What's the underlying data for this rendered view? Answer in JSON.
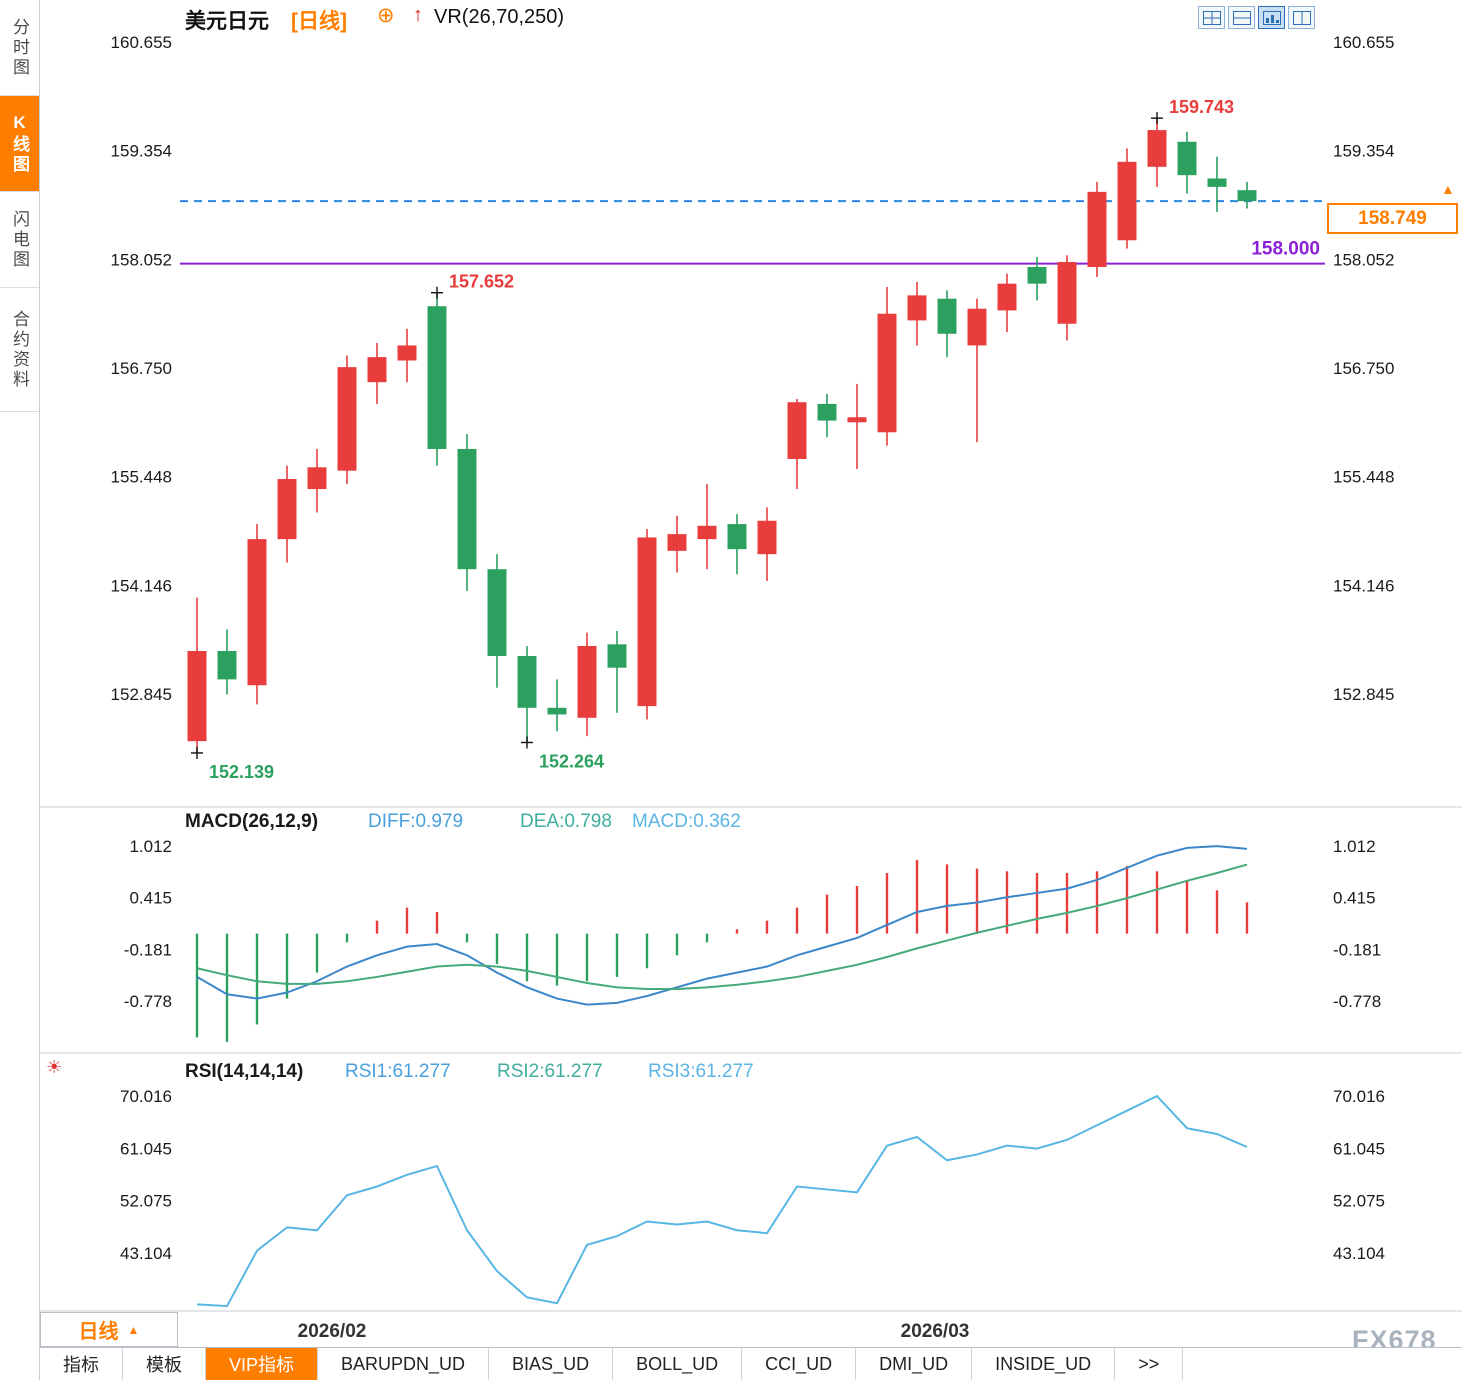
{
  "window": {
    "watermark": "FX678"
  },
  "icons": {
    "add_circle": "⊕",
    "up_arrow": "↑",
    "sun": "☀",
    "triangle_up": "▲"
  },
  "colors": {
    "up": "#e93c3c",
    "down": "#2ba05f",
    "accent": "#ff7e00",
    "level_purple": "#8a1fd6",
    "price_line_blue": "#2e86e0",
    "macd_diff_line": "#3c87c7",
    "macd_dea_line": "#46a97c",
    "rsi_line": "#58b6e4",
    "axis_text": "#1a1a1a"
  },
  "sidebar": {
    "tabs": [
      {
        "label": "分时图",
        "active": false
      },
      {
        "label": "K线图",
        "active": true
      },
      {
        "label": "闪电图",
        "active": false
      },
      {
        "label": "合约资料",
        "active": false
      }
    ]
  },
  "header": {
    "symbol": "美元日元",
    "period": "[日线]",
    "indicator": "VR(26,70,250)",
    "layout_icon_names": [
      "split-grid-icon",
      "split-rows-icon",
      "chart-panel-icon",
      "split-columns-icon"
    ]
  },
  "macd_header": {
    "title": "MACD(26,12,9)",
    "diff": "DIFF:0.979",
    "dea": "DEA:0.798",
    "macd": "MACD:0.362"
  },
  "rsi_header": {
    "title": "RSI(14,14,14)",
    "rsi1": "RSI1:61.277",
    "rsi2": "RSI2:61.277",
    "rsi3": "RSI3:61.277"
  },
  "period_selector": {
    "label": "日线"
  },
  "bottom_tabs": [
    {
      "label": "指标",
      "active": false
    },
    {
      "label": "模板",
      "active": false
    },
    {
      "label": "VIP指标",
      "active": true
    },
    {
      "label": "BARUPDN_UD",
      "active": false
    },
    {
      "label": "BIAS_UD",
      "active": false
    },
    {
      "label": "BOLL_UD",
      "active": false
    },
    {
      "label": "CCI_UD",
      "active": false
    },
    {
      "label": "DMI_UD",
      "active": false
    },
    {
      "label": "INSIDE_UD",
      "active": false
    },
    {
      "label": ">>",
      "active": false
    }
  ],
  "chart_data": [
    {
      "type": "candlestick",
      "title": "美元日元",
      "period": "日线",
      "y_ticks": [
        160.655,
        159.354,
        158.052,
        156.75,
        155.448,
        154.146,
        152.845
      ],
      "candles": [
        [
          152.28,
          154.0,
          152.139,
          153.36
        ],
        [
          153.36,
          153.62,
          152.84,
          153.02
        ],
        [
          152.95,
          154.88,
          152.72,
          154.7
        ],
        [
          154.7,
          155.58,
          154.42,
          155.42
        ],
        [
          155.3,
          155.78,
          155.02,
          155.56
        ],
        [
          155.52,
          156.9,
          155.36,
          156.76
        ],
        [
          156.58,
          157.05,
          156.32,
          156.88
        ],
        [
          156.84,
          157.22,
          156.58,
          157.02
        ],
        [
          157.49,
          157.652,
          155.58,
          155.78
        ],
        [
          155.78,
          155.96,
          154.08,
          154.34
        ],
        [
          154.34,
          154.52,
          152.92,
          153.3
        ],
        [
          153.3,
          153.42,
          152.264,
          152.68
        ],
        [
          152.68,
          153.02,
          152.4,
          152.6
        ],
        [
          152.56,
          153.58,
          152.34,
          153.42
        ],
        [
          153.44,
          153.6,
          152.62,
          153.16
        ],
        [
          152.7,
          154.82,
          152.54,
          154.72
        ],
        [
          154.56,
          154.98,
          154.3,
          154.76
        ],
        [
          154.7,
          155.36,
          154.34,
          154.86
        ],
        [
          154.88,
          155.0,
          154.28,
          154.58
        ],
        [
          154.52,
          155.08,
          154.2,
          154.92
        ],
        [
          155.66,
          156.38,
          155.3,
          156.34
        ],
        [
          156.32,
          156.44,
          155.92,
          156.12
        ],
        [
          156.1,
          156.56,
          155.54,
          156.16
        ],
        [
          155.98,
          157.72,
          155.82,
          157.4
        ],
        [
          157.32,
          157.78,
          157.02,
          157.62
        ],
        [
          157.58,
          157.68,
          156.88,
          157.16
        ],
        [
          157.02,
          157.58,
          155.86,
          157.46
        ],
        [
          157.44,
          157.88,
          157.18,
          157.76
        ],
        [
          157.96,
          158.08,
          157.56,
          157.76
        ],
        [
          157.28,
          158.1,
          157.08,
          158.02
        ],
        [
          157.96,
          158.98,
          157.84,
          158.86
        ],
        [
          158.28,
          159.38,
          158.18,
          159.22
        ],
        [
          159.16,
          159.743,
          158.92,
          159.6
        ],
        [
          159.46,
          159.58,
          158.84,
          159.06
        ],
        [
          159.02,
          159.28,
          158.62,
          158.92
        ],
        [
          158.88,
          158.98,
          158.66,
          158.749
        ]
      ],
      "annotations": [
        {
          "text": "152.139",
          "candle": 0,
          "at": "low",
          "color": "down"
        },
        {
          "text": "157.652",
          "candle": 8,
          "at": "high",
          "color": "up"
        },
        {
          "text": "152.264",
          "candle": 11,
          "at": "low",
          "color": "down"
        },
        {
          "text": "159.743",
          "candle": 32,
          "at": "high",
          "color": "up"
        }
      ],
      "level_line": {
        "value": 158.0,
        "label": "158.000"
      },
      "current_price": {
        "value": 158.749,
        "label": "158.749"
      },
      "x_labels": [
        {
          "text": "2026/02",
          "index": 4.5
        },
        {
          "text": "2026/03",
          "index": 24.6
        }
      ]
    },
    {
      "type": "macd",
      "title": "MACD(26,12,9)",
      "values": {
        "diff": 0.979,
        "dea": 0.798,
        "macd": 0.362
      },
      "y_ticks": [
        1.012,
        0.415,
        -0.181,
        -0.778
      ],
      "histogram": [
        -1.2,
        -1.25,
        -1.05,
        -0.75,
        -0.45,
        -0.1,
        0.15,
        0.3,
        0.25,
        -0.1,
        -0.35,
        -0.55,
        -0.6,
        -0.55,
        -0.5,
        -0.4,
        -0.25,
        -0.1,
        0.05,
        0.15,
        0.3,
        0.45,
        0.55,
        0.7,
        0.85,
        0.8,
        0.75,
        0.72,
        0.7,
        0.7,
        0.72,
        0.78,
        0.72,
        0.62,
        0.5,
        0.362
      ],
      "diff_line": [
        -0.5,
        -0.7,
        -0.75,
        -0.68,
        -0.55,
        -0.38,
        -0.25,
        -0.15,
        -0.12,
        -0.25,
        -0.45,
        -0.62,
        -0.75,
        -0.82,
        -0.8,
        -0.72,
        -0.62,
        -0.52,
        -0.45,
        -0.38,
        -0.25,
        -0.15,
        -0.05,
        0.1,
        0.25,
        0.32,
        0.36,
        0.42,
        0.47,
        0.52,
        0.62,
        0.76,
        0.9,
        0.99,
        1.01,
        0.979
      ],
      "dea_line": [
        -0.4,
        -0.48,
        -0.55,
        -0.58,
        -0.58,
        -0.55,
        -0.5,
        -0.44,
        -0.38,
        -0.36,
        -0.38,
        -0.43,
        -0.5,
        -0.57,
        -0.62,
        -0.64,
        -0.64,
        -0.62,
        -0.59,
        -0.55,
        -0.5,
        -0.43,
        -0.36,
        -0.27,
        -0.17,
        -0.08,
        0.01,
        0.09,
        0.17,
        0.24,
        0.32,
        0.41,
        0.51,
        0.61,
        0.7,
        0.798
      ]
    },
    {
      "type": "line",
      "title": "RSI(14,14,14)",
      "values": {
        "rsi1": 61.277,
        "rsi2": 61.277,
        "rsi3": 61.277
      },
      "y_ticks": [
        70.016,
        61.045,
        52.075,
        43.104
      ],
      "rsi": [
        34.3,
        34.0,
        43.5,
        47.5,
        47.0,
        53.0,
        54.5,
        56.5,
        58.0,
        47.0,
        40.0,
        35.5,
        34.5,
        44.5,
        46.0,
        48.5,
        48.0,
        48.5,
        47.0,
        46.5,
        54.5,
        54.0,
        53.5,
        61.5,
        63.0,
        59.0,
        60.0,
        61.5,
        61.0,
        62.5,
        65.0,
        67.5,
        70.0,
        64.5,
        63.5,
        61.277
      ]
    }
  ]
}
